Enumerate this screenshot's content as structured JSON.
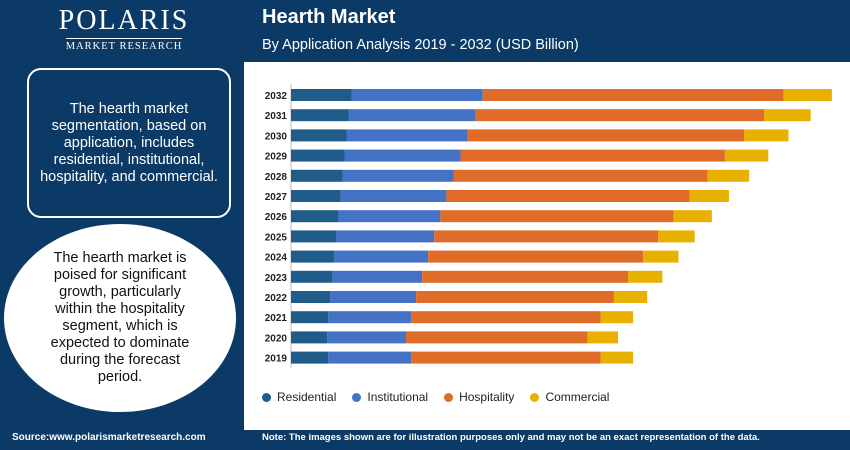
{
  "brand": {
    "name": "POLARIS",
    "sub": "MARKET RESEARCH"
  },
  "left_panel": {
    "info_text": "The hearth market segmentation, based on application, includes residential, institutional, hospitality, and commercial.",
    "circle_text": "The hearth market is poised for significant growth, particularly within the hospitality segment, which is expected to dominate during the forecast period."
  },
  "footer": {
    "source": "Source:www.polarismarketresearch.com",
    "note": "Note: The images shown are for illustration purposes only and may not be an exact representation of the data."
  },
  "colors": {
    "navy": "#0c3a66",
    "residential": "#1f5c8a",
    "institutional": "#4472c4",
    "hospitality": "#e06c2a",
    "commercial": "#e8b000"
  },
  "chart_data": {
    "type": "bar",
    "orientation": "horizontal",
    "stacked": true,
    "title": "Hearth Market",
    "subtitle": "By Application Analysis 2019 - 2032 (USD Billion)",
    "categories": [
      "2032",
      "2031",
      "2030",
      "2029",
      "2028",
      "2027",
      "2026",
      "2025",
      "2024",
      "2023",
      "2022",
      "2021",
      "2020",
      "2019"
    ],
    "series": [
      {
        "name": "Residential",
        "values": [
          6.0,
          5.7,
          5.5,
          5.3,
          5.1,
          4.9,
          4.7,
          4.5,
          4.3,
          4.1,
          3.9,
          3.7,
          3.6,
          3.7
        ]
      },
      {
        "name": "Institutional",
        "values": [
          13.0,
          12.6,
          12.0,
          11.5,
          11.0,
          10.5,
          10.1,
          9.7,
          9.3,
          8.9,
          8.5,
          8.2,
          7.8,
          8.2
        ]
      },
      {
        "name": "Hospitality",
        "values": [
          29.8,
          28.6,
          27.4,
          26.2,
          25.2,
          24.1,
          23.1,
          22.2,
          21.3,
          20.4,
          19.6,
          18.8,
          18.0,
          18.8
        ]
      },
      {
        "name": "Commercial",
        "values": [
          4.8,
          4.6,
          4.4,
          4.3,
          4.1,
          3.9,
          3.8,
          3.6,
          3.5,
          3.4,
          3.3,
          3.2,
          3.0,
          3.2
        ]
      }
    ],
    "xlim": [
      0,
      55
    ],
    "grid": false,
    "legend_position": "bottom"
  }
}
